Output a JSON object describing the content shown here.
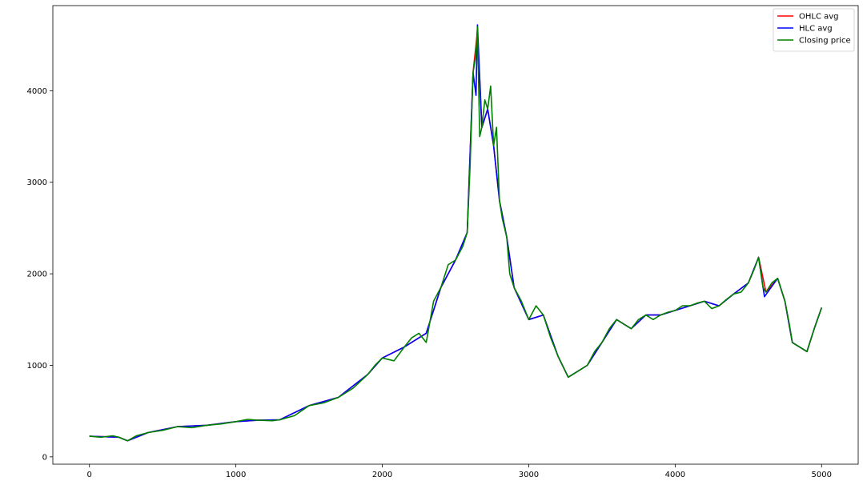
{
  "chart_data": {
    "type": "line",
    "title": "",
    "xlabel": "",
    "ylabel": "",
    "xlim": [
      -250,
      5250
    ],
    "ylim": [
      -80,
      4930
    ],
    "xticks": [
      0,
      1000,
      2000,
      3000,
      4000,
      5000
    ],
    "xtick_labels": [
      "0",
      "1000",
      "2000",
      "3000",
      "4000",
      "5000"
    ],
    "yticks": [
      0,
      1000,
      2000,
      3000,
      4000
    ],
    "ytick_labels": [
      "0",
      "1000",
      "2000",
      "3000",
      "4000"
    ],
    "grid": false,
    "legend_position": "top-right",
    "series": [
      {
        "name": "OHLC avg",
        "color": "#ff0000",
        "points": [
          [
            0,
            225
          ],
          [
            200,
            215
          ],
          [
            260,
            175
          ],
          [
            400,
            265
          ],
          [
            600,
            330
          ],
          [
            800,
            345
          ],
          [
            1000,
            385
          ],
          [
            1150,
            400
          ],
          [
            1300,
            405
          ],
          [
            1500,
            560
          ],
          [
            1700,
            650
          ],
          [
            1900,
            900
          ],
          [
            2000,
            1080
          ],
          [
            2150,
            1200
          ],
          [
            2300,
            1350
          ],
          [
            2400,
            1850
          ],
          [
            2500,
            2150
          ],
          [
            2580,
            2450
          ],
          [
            2620,
            4200
          ],
          [
            2650,
            4650
          ],
          [
            2680,
            3600
          ],
          [
            2720,
            3800
          ],
          [
            2760,
            3400
          ],
          [
            2800,
            2800
          ],
          [
            2850,
            2400
          ],
          [
            2900,
            1850
          ],
          [
            3000,
            1500
          ],
          [
            3100,
            1550
          ],
          [
            3200,
            1100
          ],
          [
            3270,
            870
          ],
          [
            3400,
            1000
          ],
          [
            3500,
            1250
          ],
          [
            3600,
            1500
          ],
          [
            3700,
            1400
          ],
          [
            3800,
            1550
          ],
          [
            3900,
            1550
          ],
          [
            4000,
            1600
          ],
          [
            4100,
            1650
          ],
          [
            4200,
            1700
          ],
          [
            4300,
            1650
          ],
          [
            4400,
            1780
          ],
          [
            4500,
            1900
          ],
          [
            4570,
            2180
          ],
          [
            4620,
            1800
          ],
          [
            4700,
            1950
          ],
          [
            4750,
            1700
          ],
          [
            4800,
            1250
          ],
          [
            4900,
            1150
          ],
          [
            4950,
            1400
          ],
          [
            5000,
            1630
          ]
        ]
      },
      {
        "name": "HLC avg",
        "color": "#0000ff",
        "points": [
          [
            0,
            225
          ],
          [
            200,
            215
          ],
          [
            260,
            175
          ],
          [
            400,
            265
          ],
          [
            600,
            330
          ],
          [
            800,
            345
          ],
          [
            1000,
            385
          ],
          [
            1150,
            400
          ],
          [
            1300,
            405
          ],
          [
            1500,
            560
          ],
          [
            1700,
            650
          ],
          [
            1900,
            900
          ],
          [
            2000,
            1080
          ],
          [
            2150,
            1200
          ],
          [
            2300,
            1350
          ],
          [
            2400,
            1850
          ],
          [
            2500,
            2150
          ],
          [
            2580,
            2450
          ],
          [
            2620,
            4200
          ],
          [
            2640,
            3950
          ],
          [
            2650,
            4720
          ],
          [
            2680,
            3600
          ],
          [
            2720,
            3800
          ],
          [
            2760,
            3400
          ],
          [
            2800,
            2800
          ],
          [
            2850,
            2400
          ],
          [
            2900,
            1850
          ],
          [
            3000,
            1500
          ],
          [
            3100,
            1550
          ],
          [
            3200,
            1100
          ],
          [
            3270,
            870
          ],
          [
            3400,
            1000
          ],
          [
            3500,
            1250
          ],
          [
            3600,
            1500
          ],
          [
            3700,
            1400
          ],
          [
            3800,
            1550
          ],
          [
            3900,
            1550
          ],
          [
            4000,
            1600
          ],
          [
            4100,
            1650
          ],
          [
            4200,
            1700
          ],
          [
            4300,
            1650
          ],
          [
            4400,
            1780
          ],
          [
            4500,
            1900
          ],
          [
            4570,
            2180
          ],
          [
            4610,
            1750
          ],
          [
            4700,
            1950
          ],
          [
            4750,
            1700
          ],
          [
            4800,
            1250
          ],
          [
            4900,
            1150
          ],
          [
            4950,
            1400
          ],
          [
            5000,
            1630
          ]
        ]
      },
      {
        "name": "Closing price",
        "color": "#008000",
        "points": [
          [
            0,
            225
          ],
          [
            80,
            215
          ],
          [
            160,
            230
          ],
          [
            200,
            215
          ],
          [
            260,
            175
          ],
          [
            320,
            230
          ],
          [
            400,
            265
          ],
          [
            500,
            290
          ],
          [
            600,
            330
          ],
          [
            700,
            320
          ],
          [
            800,
            345
          ],
          [
            900,
            360
          ],
          [
            1000,
            385
          ],
          [
            1080,
            410
          ],
          [
            1150,
            400
          ],
          [
            1250,
            395
          ],
          [
            1300,
            405
          ],
          [
            1400,
            450
          ],
          [
            1500,
            560
          ],
          [
            1600,
            590
          ],
          [
            1700,
            650
          ],
          [
            1800,
            750
          ],
          [
            1900,
            900
          ],
          [
            1950,
            1000
          ],
          [
            2000,
            1080
          ],
          [
            2080,
            1050
          ],
          [
            2150,
            1200
          ],
          [
            2200,
            1300
          ],
          [
            2250,
            1350
          ],
          [
            2300,
            1250
          ],
          [
            2350,
            1700
          ],
          [
            2400,
            1850
          ],
          [
            2450,
            2100
          ],
          [
            2500,
            2150
          ],
          [
            2550,
            2300
          ],
          [
            2580,
            2450
          ],
          [
            2600,
            3200
          ],
          [
            2620,
            4200
          ],
          [
            2640,
            4400
          ],
          [
            2650,
            4700
          ],
          [
            2665,
            3500
          ],
          [
            2680,
            3600
          ],
          [
            2700,
            3900
          ],
          [
            2720,
            3800
          ],
          [
            2740,
            4050
          ],
          [
            2760,
            3400
          ],
          [
            2780,
            3600
          ],
          [
            2800,
            2800
          ],
          [
            2820,
            2600
          ],
          [
            2850,
            2400
          ],
          [
            2870,
            2000
          ],
          [
            2900,
            1850
          ],
          [
            2950,
            1700
          ],
          [
            3000,
            1500
          ],
          [
            3050,
            1650
          ],
          [
            3100,
            1550
          ],
          [
            3150,
            1300
          ],
          [
            3200,
            1100
          ],
          [
            3270,
            870
          ],
          [
            3350,
            950
          ],
          [
            3400,
            1000
          ],
          [
            3450,
            1150
          ],
          [
            3500,
            1250
          ],
          [
            3550,
            1400
          ],
          [
            3600,
            1500
          ],
          [
            3650,
            1450
          ],
          [
            3700,
            1400
          ],
          [
            3750,
            1500
          ],
          [
            3800,
            1550
          ],
          [
            3850,
            1500
          ],
          [
            3900,
            1550
          ],
          [
            3950,
            1580
          ],
          [
            4000,
            1600
          ],
          [
            4050,
            1650
          ],
          [
            4100,
            1650
          ],
          [
            4150,
            1680
          ],
          [
            4200,
            1700
          ],
          [
            4250,
            1620
          ],
          [
            4300,
            1650
          ],
          [
            4350,
            1720
          ],
          [
            4400,
            1780
          ],
          [
            4450,
            1800
          ],
          [
            4500,
            1900
          ],
          [
            4540,
            2050
          ],
          [
            4570,
            2180
          ],
          [
            4600,
            1850
          ],
          [
            4620,
            1800
          ],
          [
            4660,
            1900
          ],
          [
            4700,
            1950
          ],
          [
            4720,
            1850
          ],
          [
            4750,
            1700
          ],
          [
            4780,
            1450
          ],
          [
            4800,
            1250
          ],
          [
            4850,
            1200
          ],
          [
            4900,
            1150
          ],
          [
            4950,
            1400
          ],
          [
            5000,
            1630
          ]
        ]
      }
    ]
  }
}
